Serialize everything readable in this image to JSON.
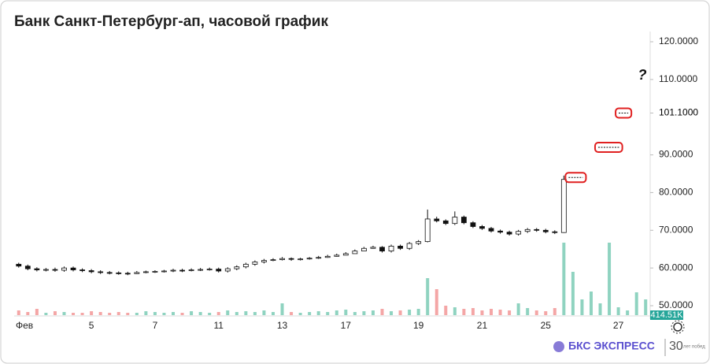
{
  "chart_data": {
    "type": "candlestick",
    "title": "Банк Санкт-Петербург-ап, часовой график",
    "categories": [
      "Фев",
      null,
      null,
      null,
      null,
      null,
      null,
      null,
      "5",
      null,
      null,
      null,
      null,
      null,
      null,
      "7",
      null,
      null,
      null,
      null,
      null,
      null,
      "11",
      null,
      null,
      null,
      null,
      null,
      null,
      "13",
      null,
      null,
      null,
      null,
      null,
      null,
      "17",
      null,
      null,
      null,
      null,
      null,
      null,
      null,
      "19",
      null,
      null,
      null,
      null,
      null,
      null,
      "21",
      null,
      null,
      null,
      null,
      null,
      null,
      "25",
      null,
      null,
      null,
      null,
      null,
      null,
      null,
      "27",
      null,
      null,
      null
    ],
    "open": [
      61.0,
      60.5,
      59.8,
      59.5,
      59.6,
      59.4,
      60.0,
      59.5,
      59.3,
      59.0,
      58.8,
      58.7,
      58.6,
      58.5,
      58.8,
      59.0,
      59.1,
      59.2,
      59.4,
      59.3,
      59.5,
      59.6,
      59.7,
      59.2,
      59.8,
      60.3,
      61.0,
      61.6,
      62.0,
      62.2,
      62.5,
      62.3,
      62.4,
      62.6,
      62.8,
      63.1,
      63.4,
      63.8,
      64.5,
      65.2,
      65.5,
      64.5,
      65.8,
      65.2,
      66.5,
      67.0,
      73.0,
      72.5,
      71.8,
      73.5,
      72.0,
      71.0,
      70.5,
      69.8,
      69.5,
      69.0,
      69.7,
      70.2,
      70.0,
      69.6,
      69.4,
      null,
      null,
      null,
      null,
      null,
      null,
      null,
      null,
      null
    ],
    "high": [
      61.4,
      60.9,
      60.2,
      60.0,
      60.1,
      60.4,
      60.4,
      59.9,
      59.7,
      59.4,
      59.2,
      59.1,
      59.0,
      59.2,
      59.3,
      59.4,
      59.5,
      59.8,
      59.8,
      59.9,
      60.0,
      60.1,
      60.1,
      60.2,
      60.7,
      61.4,
      62.0,
      62.4,
      62.6,
      62.9,
      62.8,
      62.7,
      62.9,
      63.2,
      63.5,
      63.8,
      64.2,
      64.9,
      65.6,
      65.9,
      65.8,
      66.2,
      66.2,
      66.9,
      67.4,
      75.5,
      73.6,
      72.9,
      75.0,
      73.9,
      72.4,
      71.4,
      70.9,
      70.2,
      69.9,
      70.1,
      70.6,
      70.6,
      70.4,
      70.0,
      84.5,
      null,
      null,
      null,
      null,
      null,
      null,
      null,
      null,
      null
    ],
    "low": [
      60.1,
      59.4,
      59.1,
      59.1,
      59.0,
      59.0,
      59.1,
      58.9,
      58.6,
      58.4,
      58.3,
      58.2,
      58.1,
      58.4,
      58.6,
      58.7,
      58.8,
      58.9,
      58.9,
      59.1,
      59.2,
      59.3,
      58.8,
      58.8,
      59.4,
      59.9,
      60.6,
      61.2,
      61.8,
      62.0,
      61.9,
      62.0,
      62.2,
      62.4,
      62.7,
      63.0,
      63.4,
      64.0,
      64.8,
      65.1,
      64.1,
      64.1,
      64.8,
      64.8,
      66.1,
      66.8,
      72.1,
      71.4,
      71.4,
      71.6,
      70.6,
      70.1,
      69.4,
      69.1,
      68.6,
      68.6,
      69.3,
      69.6,
      69.2,
      69.0,
      69.3,
      null,
      null,
      null,
      null,
      null,
      null,
      null,
      null,
      null
    ],
    "close": [
      60.5,
      59.8,
      59.5,
      59.6,
      59.4,
      60.0,
      59.5,
      59.3,
      59.0,
      58.8,
      58.7,
      58.6,
      58.5,
      58.8,
      59.0,
      59.1,
      59.2,
      59.4,
      59.3,
      59.5,
      59.6,
      59.7,
      59.2,
      59.8,
      60.3,
      61.0,
      61.6,
      62.0,
      62.2,
      62.5,
      62.3,
      62.4,
      62.6,
      62.8,
      63.1,
      63.4,
      63.8,
      64.5,
      65.2,
      65.5,
      64.5,
      65.8,
      65.2,
      66.5,
      67.0,
      73.0,
      72.5,
      71.8,
      73.5,
      72.0,
      71.0,
      70.5,
      69.8,
      69.5,
      69.0,
      69.7,
      70.2,
      70.0,
      69.6,
      69.4,
      83.5,
      null,
      null,
      null,
      null,
      null,
      null,
      null,
      null,
      null
    ],
    "volume": [
      60,
      40,
      80,
      30,
      50,
      40,
      30,
      30,
      50,
      40,
      30,
      40,
      30,
      30,
      50,
      40,
      30,
      40,
      30,
      50,
      40,
      30,
      40,
      60,
      40,
      50,
      40,
      60,
      40,
      150,
      40,
      30,
      40,
      50,
      40,
      60,
      70,
      40,
      50,
      60,
      80,
      50,
      60,
      70,
      80,
      470,
      330,
      120,
      100,
      80,
      90,
      60,
      80,
      70,
      60,
      150,
      90,
      60,
      50,
      90,
      920,
      550,
      200,
      300,
      150,
      920,
      100,
      60,
      290,
      200
    ],
    "vlim": [
      0,
      1000
    ],
    "up_color": "#ffffff",
    "down_color": "#111111",
    "volume_up_color": "#8fd3c0",
    "volume_down_color": "#f4a6a6",
    "ylim": [
      50,
      120
    ],
    "yticks": [
      {
        "value": 50,
        "label": "50.0000"
      },
      {
        "value": 60,
        "label": "60.0000"
      },
      {
        "value": 70,
        "label": "70.0000"
      },
      {
        "value": 80,
        "label": "80.0000"
      },
      {
        "value": 90,
        "label": "90.0000"
      },
      {
        "value": 101.1,
        "label": "101.1000"
      },
      {
        "value": 110,
        "label": "110.0000"
      },
      {
        "value": 120,
        "label": "120.0000"
      }
    ],
    "levels": [
      84,
      92,
      101.1
    ],
    "level_color": "#e02020",
    "question": "?",
    "volume_label": "414.51K"
  },
  "footer": {
    "brand": "БКС ЭКСПРЕСС",
    "badge": "30",
    "badge_text": "лет побед"
  }
}
